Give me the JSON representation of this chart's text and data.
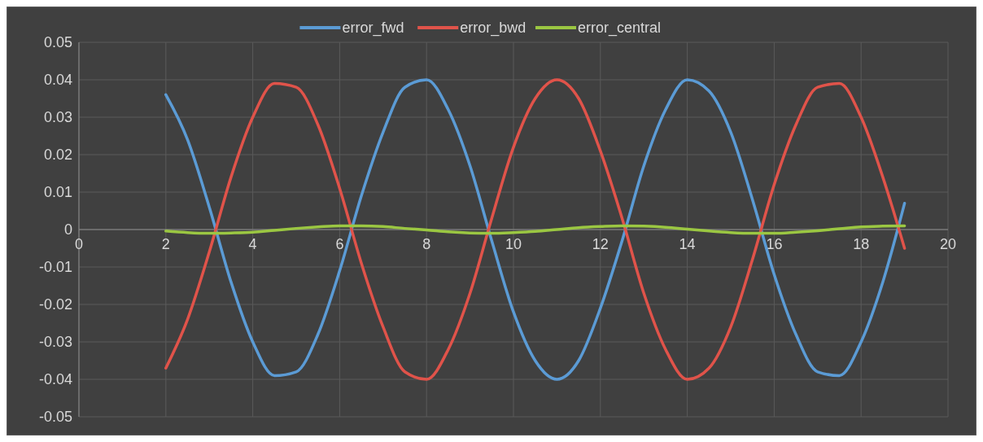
{
  "chart_data": {
    "type": "line",
    "x": [
      2,
      2.5,
      3,
      3.5,
      4,
      4.5,
      5,
      5.5,
      6,
      6.5,
      7,
      7.5,
      8,
      8.5,
      9,
      9.5,
      10,
      10.5,
      11,
      11.5,
      12,
      12.5,
      13,
      13.5,
      14,
      14.5,
      15,
      15.5,
      16,
      16.5,
      17,
      17.5,
      18,
      18.5,
      19
    ],
    "series": [
      {
        "name": "error_fwd",
        "color": "#5b9bd5",
        "values": [
          0.036,
          0.024,
          0.006,
          -0.014,
          -0.03,
          -0.039,
          -0.038,
          -0.028,
          -0.011,
          0.009,
          0.026,
          0.038,
          0.04,
          0.032,
          0.017,
          -0.003,
          -0.022,
          -0.035,
          -0.04,
          -0.035,
          -0.021,
          -0.003,
          0.017,
          0.032,
          0.04,
          0.037,
          0.026,
          0.008,
          -0.012,
          -0.028,
          -0.038,
          -0.039,
          -0.03,
          -0.014,
          0.007
        ]
      },
      {
        "name": "error_bwd",
        "color": "#e0534a",
        "values": [
          -0.037,
          -0.024,
          -0.006,
          0.014,
          0.03,
          0.039,
          0.038,
          0.028,
          0.011,
          -0.009,
          -0.026,
          -0.038,
          -0.04,
          -0.032,
          -0.017,
          0.003,
          0.022,
          0.035,
          0.04,
          0.035,
          0.021,
          0.003,
          -0.017,
          -0.032,
          -0.04,
          -0.037,
          -0.026,
          -0.008,
          0.012,
          0.028,
          0.038,
          0.039,
          0.03,
          0.014,
          -0.005
        ]
      },
      {
        "name": "error_central",
        "color": "#9bc742",
        "values": [
          -0.0004,
          -0.0008,
          -0.001,
          -0.0009,
          -0.0007,
          -0.0002,
          0.0003,
          0.0007,
          0.001,
          0.001,
          0.0008,
          0.0003,
          -0.0001,
          -0.0006,
          -0.0009,
          -0.001,
          -0.0008,
          -0.0005,
          0,
          0.0005,
          0.0008,
          0.001,
          0.0009,
          0.0006,
          0.0001,
          -0.0004,
          -0.0008,
          -0.001,
          -0.001,
          -0.0007,
          -0.0003,
          0.0002,
          0.0007,
          0.0009,
          0.001
        ]
      }
    ],
    "xlim": [
      0,
      20
    ],
    "xticks": [
      0,
      2,
      4,
      6,
      8,
      10,
      12,
      14,
      16,
      18,
      20
    ],
    "ylim": [
      -0.05,
      0.05
    ],
    "yticks": [
      -0.05,
      -0.04,
      -0.03,
      -0.02,
      -0.01,
      0,
      0.01,
      0.02,
      0.03,
      0.04,
      0.05
    ],
    "grid": true,
    "legend": "top",
    "marker": "none",
    "line_style": "solid"
  }
}
